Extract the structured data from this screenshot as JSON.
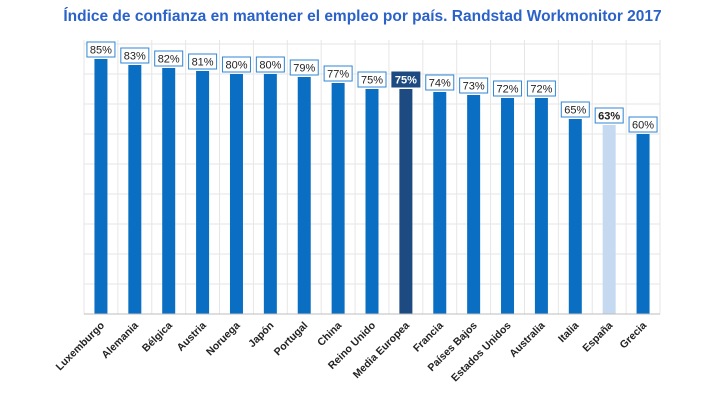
{
  "chart_data": {
    "type": "bar",
    "title": "Índice de confianza en mantener el empleo por país. Randstad Workmonitor 2017",
    "xlabel": "",
    "ylabel": "",
    "ylim": [
      0,
      85
    ],
    "grid": true,
    "value_suffix": "%",
    "categories": [
      "Luxemburgo",
      "Alemania",
      "Bélgica",
      "Austria",
      "Noruega",
      "Japón",
      "Portugal",
      "China",
      "Reino Unido",
      "Media Europea",
      "Francia",
      "Países Bajos",
      "Estados Unidos",
      "Australia",
      "Italia",
      "España",
      "Grecia"
    ],
    "values": [
      85,
      83,
      82,
      81,
      80,
      80,
      79,
      77,
      75,
      75,
      74,
      73,
      72,
      72,
      65,
      63,
      60
    ],
    "highlight": {
      "Media Europea": "dark",
      "España": "light"
    },
    "colors": {
      "bar": "#0a6fc2",
      "bar_dark": "#1d4a80",
      "bar_light": "#c5d9f1",
      "label_border": "#2f86d4",
      "grid": "#e6e6e6",
      "axis": "#bdbdbd",
      "title": "#2b62c9"
    }
  }
}
